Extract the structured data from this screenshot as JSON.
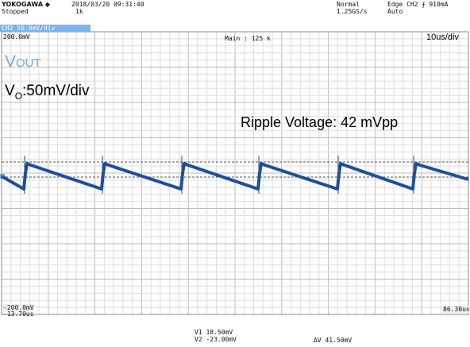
{
  "header": {
    "brand": "YOKOGAWA ◆",
    "datetime": "2018/03/20 09:31:40",
    "state": "Stopped",
    "count": "1k",
    "channel": "CH2 50.0mV/div",
    "mode": "Normal",
    "rate": "1.25GS/s",
    "trigger": "Edge CH2 ⨍ 910mA",
    "trigger_mode": "Auto"
  },
  "screen": {
    "top_level": "200.0mV",
    "zoom": "Main : 125 k",
    "timebase": "10us/div",
    "bottom_level": "-200.0mV",
    "t_start": "-13.70us",
    "t_end": "86.30us"
  },
  "annotations": {
    "signal_main": "V",
    "signal_sub": "OUT",
    "scale_main": "V",
    "scale_sub": "O",
    "scale_rest": ":50mV/div",
    "ripple": "Ripple Voltage: 42 mVpp"
  },
  "readout": {
    "v1": "V1  18.50mV",
    "v2": "V2 -23.00mV",
    "dv": "ΔV  41.50mV"
  }
}
